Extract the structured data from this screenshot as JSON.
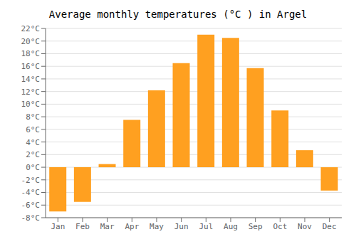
{
  "chart_data": {
    "type": "bar",
    "title": "Average monthly temperatures (°C ) in Argel",
    "categories": [
      "Jan",
      "Feb",
      "Mar",
      "Apr",
      "May",
      "Jun",
      "Jul",
      "Aug",
      "Sep",
      "Oct",
      "Nov",
      "Dec"
    ],
    "values": [
      -7.0,
      -5.5,
      0.5,
      7.5,
      12.2,
      16.5,
      21.0,
      20.5,
      15.7,
      9.0,
      2.7,
      -3.7
    ],
    "color": "#FFA020",
    "ylim": [
      -8,
      22
    ],
    "yticks": [
      {
        "value": -8,
        "label": "-8°C"
      },
      {
        "value": -6,
        "label": "-6°C"
      },
      {
        "value": -4,
        "label": "-4°C"
      },
      {
        "value": -2,
        "label": "-2°C"
      },
      {
        "value": 0,
        "label": "0°C"
      },
      {
        "value": 2,
        "label": "2°C"
      },
      {
        "value": 4,
        "label": "4°C"
      },
      {
        "value": 6,
        "label": "6°C"
      },
      {
        "value": 8,
        "label": "8°C"
      },
      {
        "value": 10,
        "label": "10°C"
      },
      {
        "value": 12,
        "label": "12°C"
      },
      {
        "value": 14,
        "label": "14°C"
      },
      {
        "value": 16,
        "label": "16°C"
      },
      {
        "value": 18,
        "label": "18°C"
      },
      {
        "value": 20,
        "label": "20°C"
      },
      {
        "value": 22,
        "label": "22°C"
      }
    ],
    "grid": true
  }
}
